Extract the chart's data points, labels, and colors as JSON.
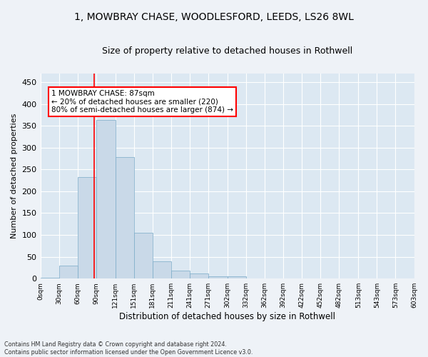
{
  "title_line1": "1, MOWBRAY CHASE, WOODLESFORD, LEEDS, LS26 8WL",
  "title_line2": "Size of property relative to detached houses in Rothwell",
  "xlabel": "Distribution of detached houses by size in Rothwell",
  "ylabel": "Number of detached properties",
  "footer_line1": "Contains HM Land Registry data © Crown copyright and database right 2024.",
  "footer_line2": "Contains public sector information licensed under the Open Government Licence v3.0.",
  "bar_values": [
    2,
    30,
    233,
    363,
    278,
    105,
    40,
    18,
    12,
    6,
    5,
    1,
    0,
    0,
    1,
    0,
    0,
    0,
    0,
    0
  ],
  "bar_color": "#c9d9e8",
  "bar_edge_color": "#7aaac8",
  "categories": [
    "0sqm",
    "30sqm",
    "60sqm",
    "90sqm",
    "121sqm",
    "151sqm",
    "181sqm",
    "211sqm",
    "241sqm",
    "271sqm",
    "302sqm",
    "332sqm",
    "362sqm",
    "392sqm",
    "422sqm",
    "452sqm",
    "482sqm",
    "513sqm",
    "543sqm",
    "573sqm",
    "603sqm"
  ],
  "ylim": [
    0,
    470
  ],
  "yticks": [
    0,
    50,
    100,
    150,
    200,
    250,
    300,
    350,
    400,
    450
  ],
  "annotation_text": "1 MOWBRAY CHASE: 87sqm\n← 20% of detached houses are smaller (220)\n80% of semi-detached houses are larger (874) →",
  "vline_x": 87,
  "background_color": "#eef2f7",
  "grid_color": "#ffffff",
  "title_fontsize": 10,
  "subtitle_fontsize": 9,
  "ax_background": "#dce8f2"
}
